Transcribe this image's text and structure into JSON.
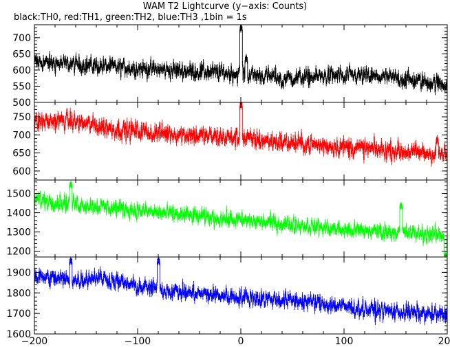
{
  "title": "WAM T2 Lightcurve (y−axis: Counts)",
  "subtitle": "black:TH0, red:TH1, green:TH2, blue:TH3 ,1bin = 1s",
  "chart_data": {
    "type": "line",
    "x_range": [
      -200,
      200
    ],
    "x_ticks": [
      -200,
      -100,
      0,
      100,
      200
    ],
    "x_tick_labels": [
      "−200",
      "−100",
      "0",
      "100",
      "200"
    ],
    "grid": false,
    "panels": [
      {
        "name": "TH0",
        "color": "#000000",
        "ylim": [
          500,
          740
        ],
        "y_ticks": [
          500,
          550,
          600,
          650,
          700
        ],
        "trend": [
          [
            -200,
            625
          ],
          [
            -100,
            605
          ],
          [
            -10,
            590
          ],
          [
            50,
            575
          ],
          [
            100,
            585
          ],
          [
            150,
            575
          ],
          [
            200,
            555
          ]
        ],
        "spikes": [
          [
            0,
            735
          ],
          [
            5,
            640
          ],
          [
            40,
            560
          ],
          [
            100,
            575
          ]
        ],
        "noise": 22
      },
      {
        "name": "TH1",
        "color": "#ff0000",
        "ylim": [
          575,
          790
        ],
        "y_ticks": [
          600,
          650,
          700,
          750
        ],
        "trend": [
          [
            -200,
            735
          ],
          [
            -170,
            740
          ],
          [
            -120,
            715
          ],
          [
            -50,
            700
          ],
          [
            0,
            690
          ],
          [
            60,
            675
          ],
          [
            120,
            662
          ],
          [
            200,
            645
          ]
        ],
        "spikes": [
          [
            0,
            790
          ],
          [
            -85,
            700
          ],
          [
            190,
            690
          ]
        ],
        "noise": 22
      },
      {
        "name": "TH2",
        "color": "#00ff00",
        "ylim": [
          1170,
          1570
        ],
        "y_ticks": [
          1200,
          1300,
          1400,
          1500
        ],
        "trend": [
          [
            -200,
            1470
          ],
          [
            -150,
            1440
          ],
          [
            -80,
            1400
          ],
          [
            0,
            1360
          ],
          [
            60,
            1335
          ],
          [
            100,
            1310
          ],
          [
            150,
            1300
          ],
          [
            200,
            1280
          ]
        ],
        "spikes": [
          [
            155,
            1440
          ],
          [
            -165,
            1550
          ],
          [
            198,
            1180
          ]
        ],
        "noise": 35
      },
      {
        "name": "TH3",
        "color": "#0000ff",
        "ylim": [
          1600,
          1975
        ],
        "y_ticks": [
          1600,
          1700,
          1800,
          1900
        ],
        "trend": [
          [
            -200,
            1880
          ],
          [
            -160,
            1860
          ],
          [
            -140,
            1880
          ],
          [
            -100,
            1830
          ],
          [
            -50,
            1800
          ],
          [
            0,
            1780
          ],
          [
            60,
            1760
          ],
          [
            120,
            1720
          ],
          [
            200,
            1690
          ]
        ],
        "spikes": [
          [
            -165,
            1960
          ],
          [
            -80,
            1960
          ]
        ],
        "noise": 35
      }
    ]
  }
}
